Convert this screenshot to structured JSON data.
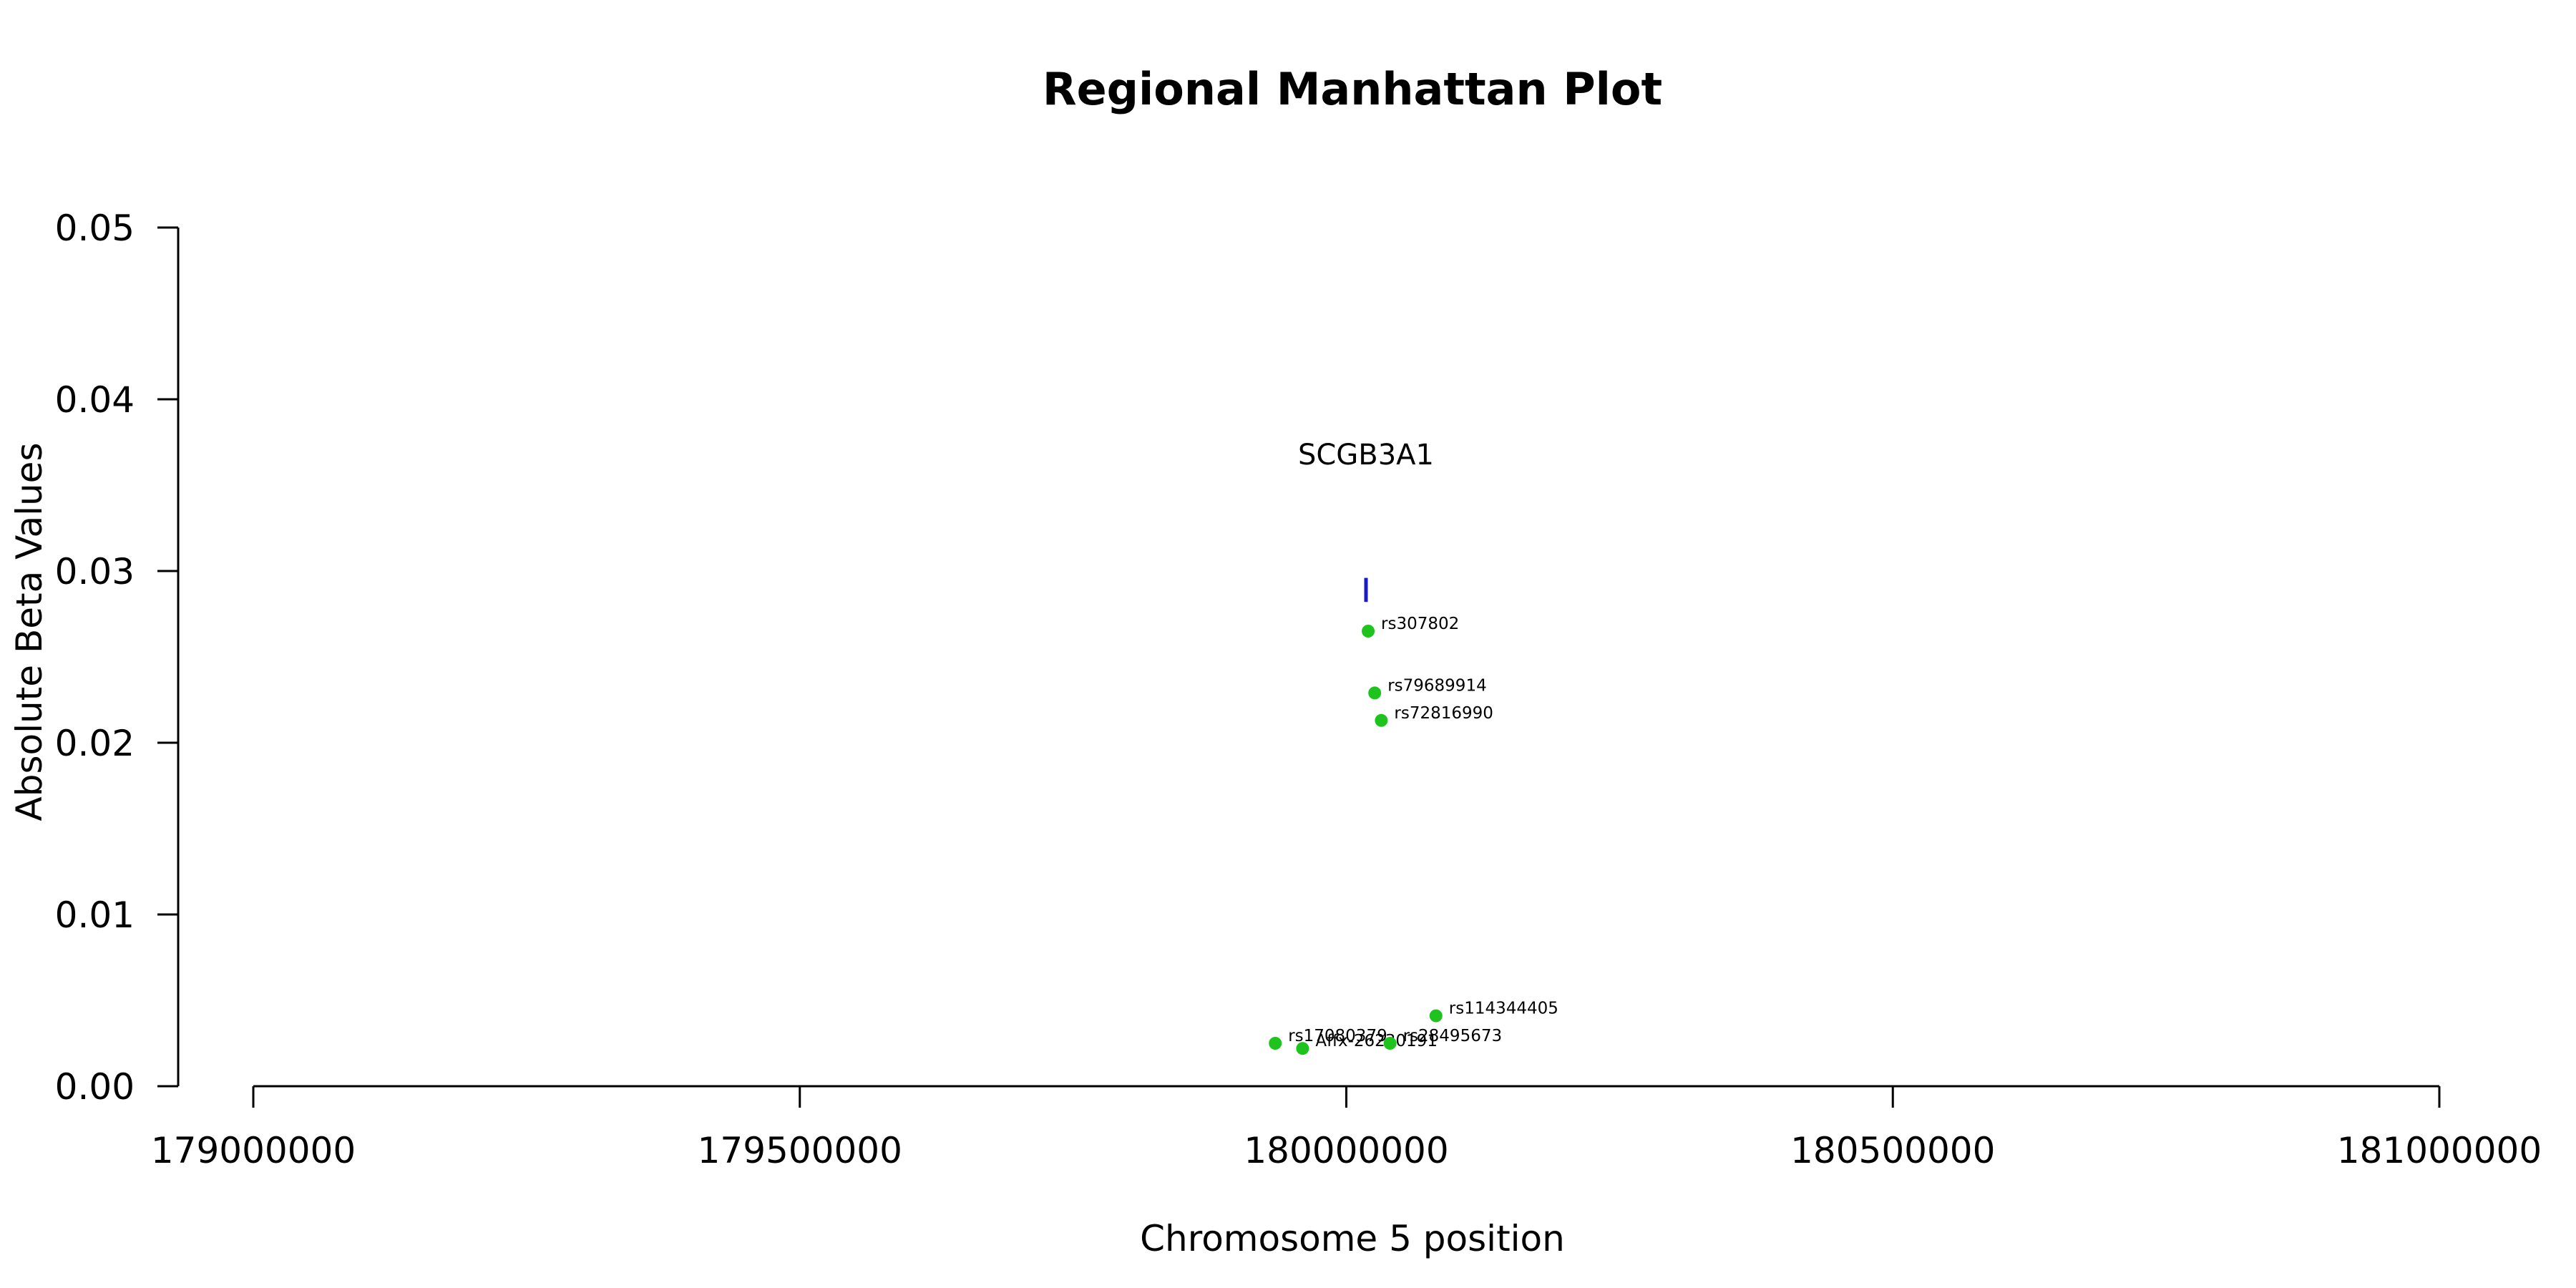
{
  "chart_data": {
    "type": "scatter",
    "title": "Regional Manhattan Plot",
    "xlabel": "Chromosome 5 position",
    "ylabel": "Absolute Beta Values",
    "xlim": [
      179000000,
      181000000
    ],
    "ylim": [
      0,
      0.05
    ],
    "x_ticks": [
      179000000,
      179500000,
      180000000,
      180500000,
      181000000
    ],
    "x_tick_labels": [
      "179000000",
      "179500000",
      "180000000",
      "180500000",
      "181000000"
    ],
    "y_ticks": [
      0,
      0.01,
      0.02,
      0.03,
      0.04,
      0.05
    ],
    "y_tick_labels": [
      "0.00",
      "0.01",
      "0.02",
      "0.03",
      "0.04",
      "0.05"
    ],
    "grid": false,
    "legend": "none",
    "point_color": "#1ec31e",
    "gene_color": "#1a1ac8",
    "gene": {
      "name": "SCGB3A1",
      "x": 180018000,
      "y_range": [
        0.0282,
        0.0296
      ],
      "label_y": 0.0362
    },
    "points": [
      {
        "id": "rs307802",
        "x": 180020000,
        "y": 0.0265
      },
      {
        "id": "rs79689914",
        "x": 180026000,
        "y": 0.0229
      },
      {
        "id": "rs72816990",
        "x": 180032000,
        "y": 0.0213
      },
      {
        "id": "rs114344405",
        "x": 180082000,
        "y": 0.0041
      },
      {
        "id": "rs17080379",
        "x": 179935000,
        "y": 0.0025
      },
      {
        "id": "Affx-26230191",
        "x": 179960000,
        "y": 0.0022
      },
      {
        "id": "rs28495673",
        "x": 180040000,
        "y": 0.0025
      }
    ]
  }
}
